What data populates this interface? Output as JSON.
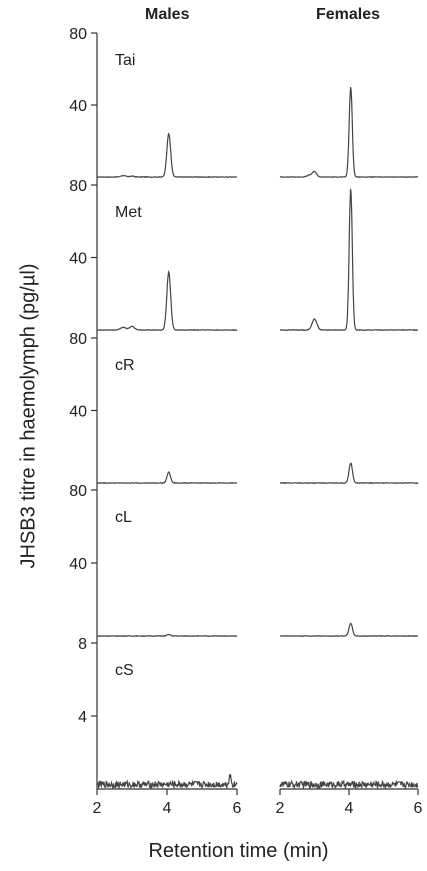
{
  "chart_data": {
    "type": "line",
    "column_titles": [
      "Males",
      "Females"
    ],
    "ylabel": "JHSB3 titre in haemolymph (pg/µl)",
    "xlabel": "Retention time (min)",
    "xlim": [
      2,
      6
    ],
    "xticks": [
      "2",
      "4",
      "6"
    ],
    "panels": [
      {
        "label": "Tai",
        "ylim": [
          0,
          80
        ],
        "yticks": [
          "80",
          "40"
        ],
        "male_peaks": [
          [
            2.75,
            0.8,
            0.07
          ],
          [
            3.0,
            0.5,
            0.06
          ],
          [
            4.05,
            24,
            0.055
          ]
        ],
        "female_peaks": [
          [
            2.85,
            1.0,
            0.07
          ],
          [
            3.0,
            3.0,
            0.06
          ],
          [
            4.05,
            50,
            0.045
          ]
        ]
      },
      {
        "label": "Met",
        "ylim": [
          0,
          80
        ],
        "yticks": [
          "80",
          "40"
        ],
        "male_peaks": [
          [
            2.75,
            1.5,
            0.08
          ],
          [
            3.0,
            2.0,
            0.07
          ],
          [
            4.05,
            32,
            0.055
          ]
        ],
        "female_peaks": [
          [
            3.0,
            6.0,
            0.07
          ],
          [
            4.05,
            78,
            0.045
          ]
        ]
      },
      {
        "label": "cR",
        "ylim": [
          0,
          80
        ],
        "yticks": [
          "80",
          "40"
        ],
        "male_peaks": [
          [
            4.05,
            6,
            0.05
          ]
        ],
        "female_peaks": [
          [
            4.05,
            11,
            0.05
          ]
        ]
      },
      {
        "label": "cL",
        "ylim": [
          0,
          80
        ],
        "yticks": [
          "80",
          "40"
        ],
        "male_peaks": [
          [
            4.05,
            0.8,
            0.05
          ]
        ],
        "female_peaks": [
          [
            4.05,
            7,
            0.05
          ]
        ]
      },
      {
        "label": "cS",
        "ylim": [
          0,
          8
        ],
        "yticks": [
          "8",
          "4"
        ],
        "male_peaks": [
          [
            5.8,
            0.5,
            0.03
          ]
        ],
        "female_peaks": [],
        "noise": 0.18
      }
    ]
  },
  "colors": {
    "trace": "#444444",
    "axis": "#333333"
  }
}
